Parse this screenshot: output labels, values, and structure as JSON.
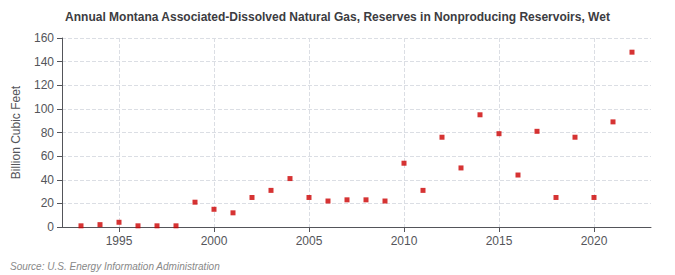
{
  "chart_data": {
    "type": "scatter",
    "title": "Annual Montana Associated-Dissolved Natural Gas, Reserves in Nonproducing Reservoirs, Wet",
    "ylabel": "Billion Cubic Feet",
    "annotations": [
      "Source: U.S. Energy Information Administration"
    ],
    "x": [
      1993,
      1994,
      1995,
      1996,
      1997,
      1998,
      1999,
      2000,
      2001,
      2002,
      2003,
      2004,
      2005,
      2006,
      2007,
      2008,
      2009,
      2010,
      2011,
      2012,
      2013,
      2014,
      2015,
      2016,
      2017,
      2018,
      2019,
      2020,
      2021,
      2022
    ],
    "values": [
      1,
      2,
      4,
      1,
      1,
      1,
      21,
      15,
      12,
      25,
      31,
      41,
      25,
      22,
      23,
      23,
      22,
      54,
      31,
      76,
      50,
      95,
      79,
      44,
      81,
      25,
      76,
      25,
      89,
      148
    ],
    "color": "#cc0000",
    "marker": "square",
    "xlim": [
      1992,
      2023
    ],
    "ylim": [
      0,
      160
    ],
    "xticks": [
      1995,
      2000,
      2005,
      2010,
      2015,
      2020
    ],
    "yticks": [
      0,
      20,
      40,
      60,
      80,
      100,
      120,
      140,
      160
    ],
    "grid": true
  }
}
